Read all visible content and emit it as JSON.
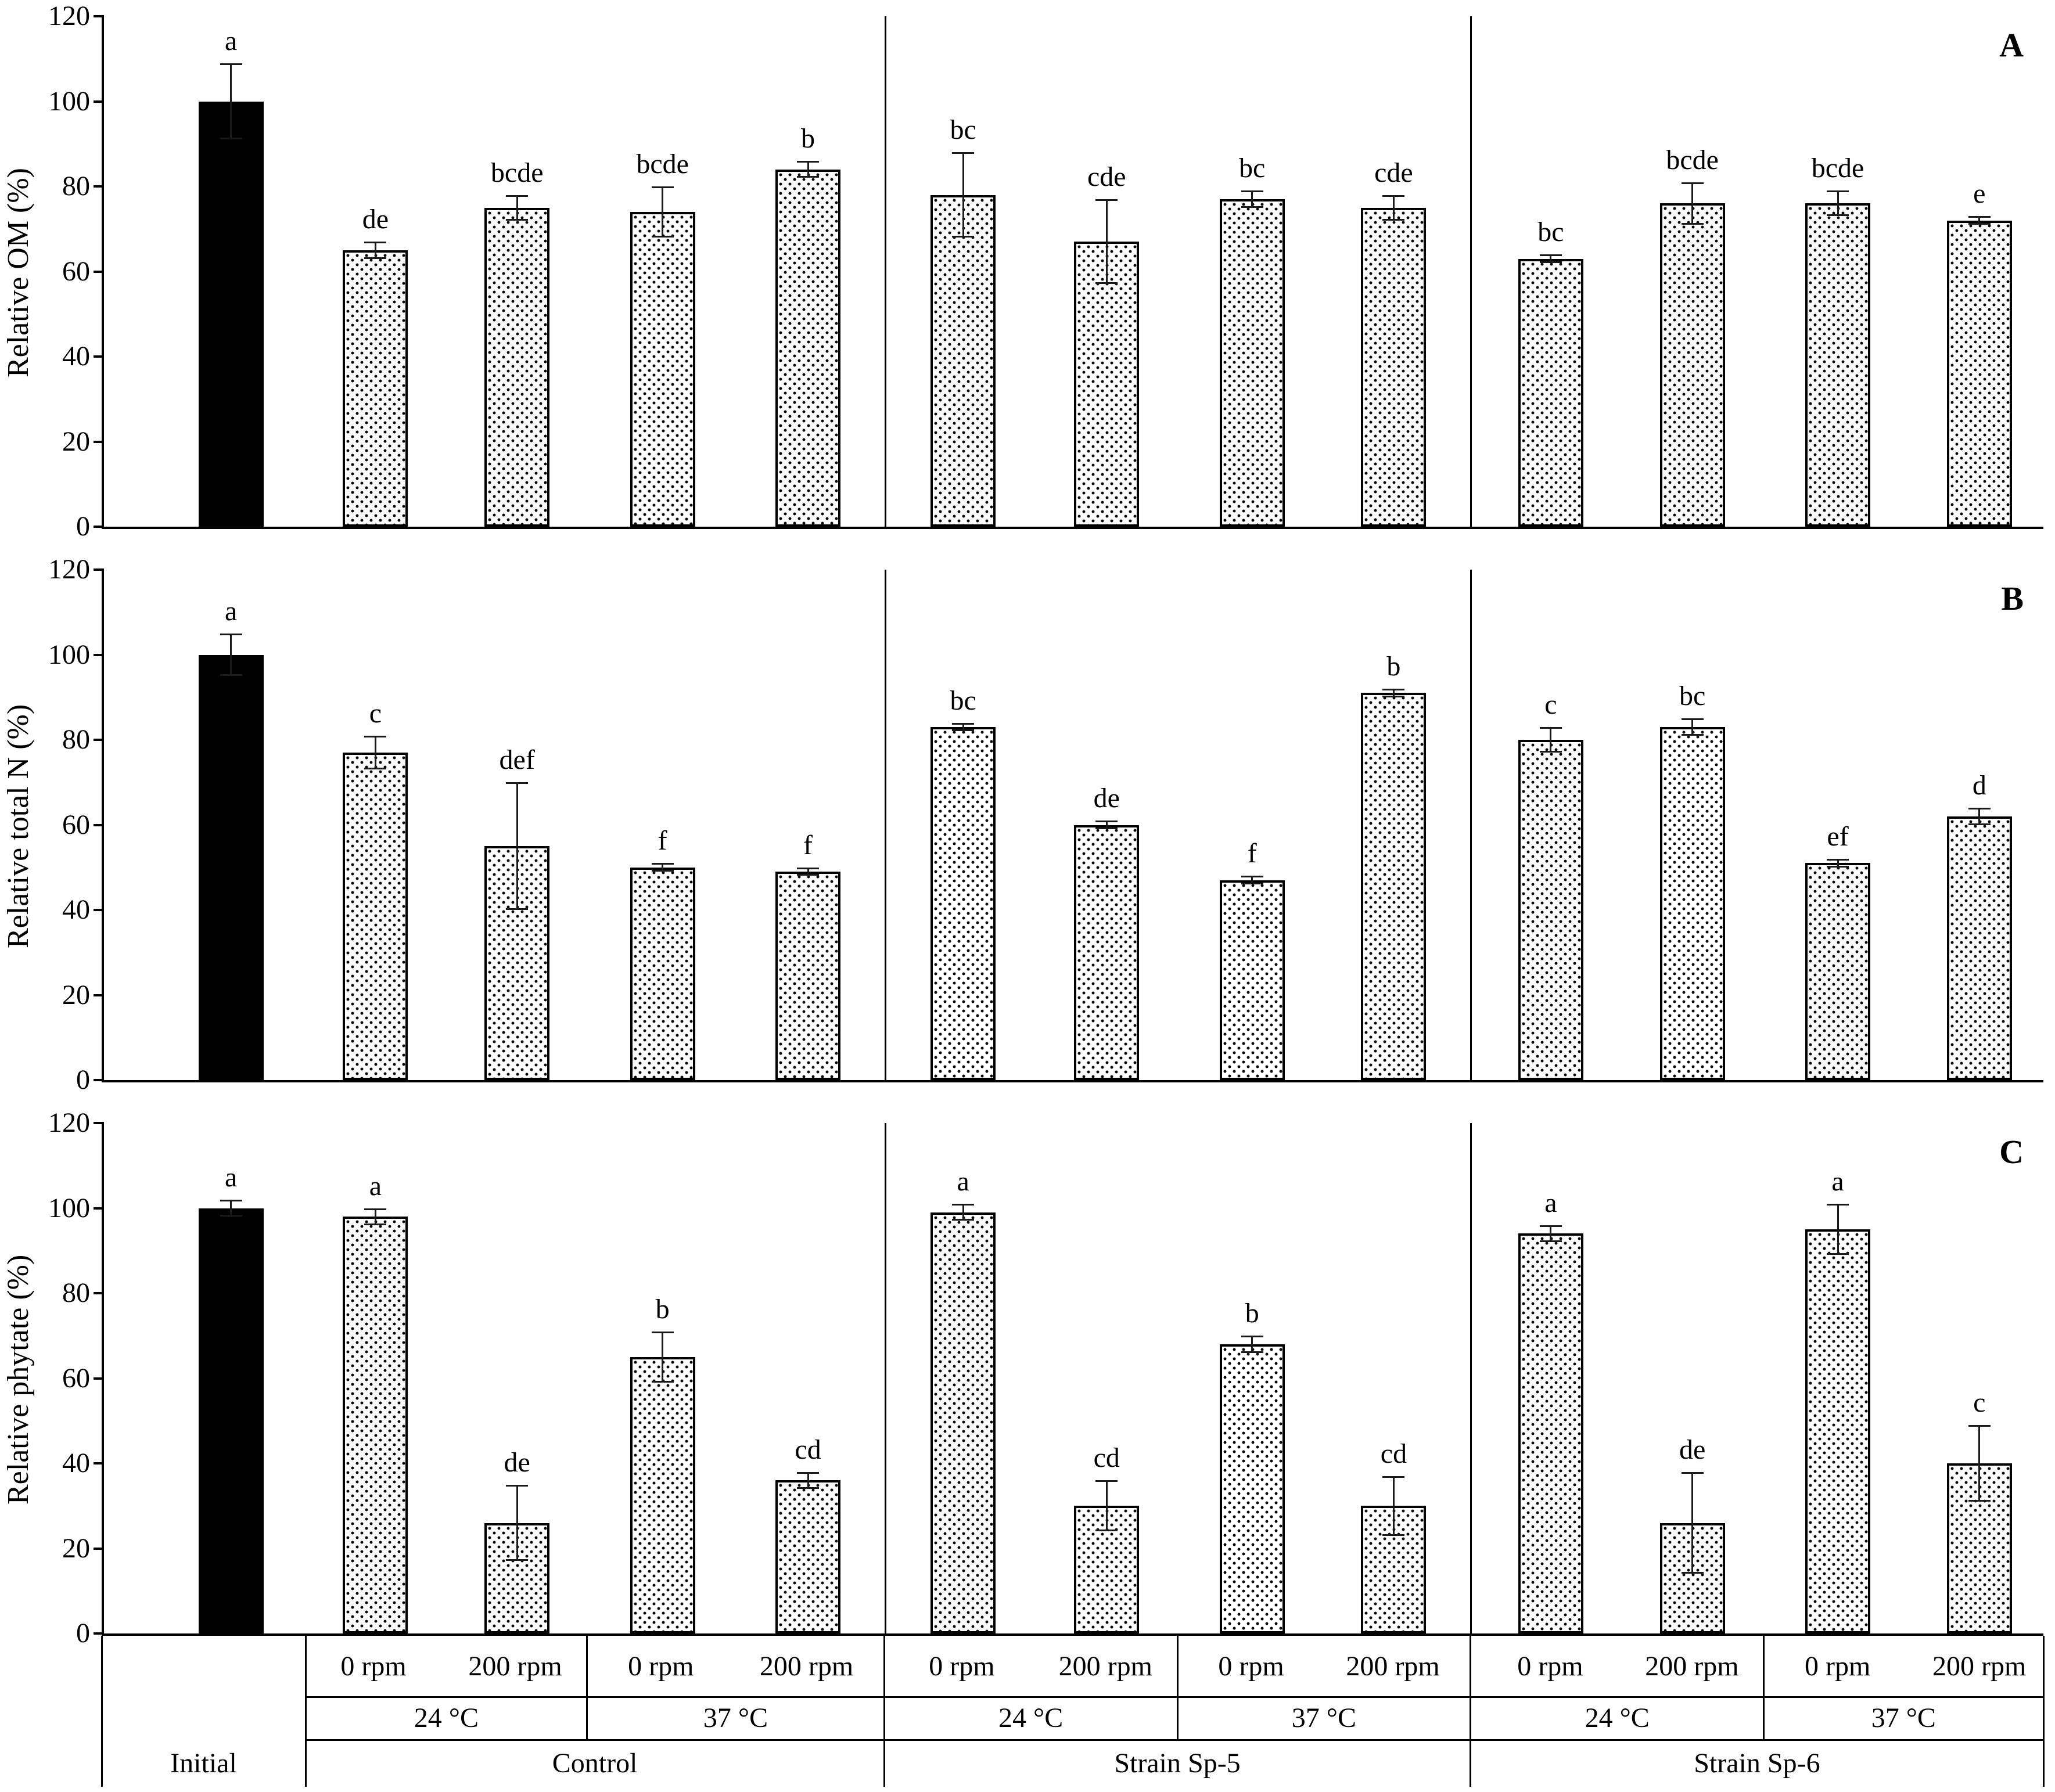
{
  "chart_data": [
    {
      "type": "bar",
      "panel_label": "A",
      "ylabel": "Relative OM (%)",
      "xlabel": "",
      "ylim": [
        0,
        120
      ],
      "yticks": [
        0,
        20,
        40,
        60,
        80,
        100,
        120
      ],
      "grid": false,
      "legend": "none",
      "bars": [
        {
          "label": "Initial",
          "value": 100,
          "error": 9,
          "letter": "a",
          "fill": "solid-black"
        },
        {
          "label": "Control 24 °C 0 rpm",
          "value": 65,
          "error": 2,
          "letter": "de",
          "fill": "dotted"
        },
        {
          "label": "Control 24 °C 200 rpm",
          "value": 75,
          "error": 3,
          "letter": "bcde",
          "fill": "dotted"
        },
        {
          "label": "Control 37 °C 0 rpm",
          "value": 74,
          "error": 6,
          "letter": "bcde",
          "fill": "dotted"
        },
        {
          "label": "Control 37 °C 200 rpm",
          "value": 84,
          "error": 2,
          "letter": "b",
          "fill": "dotted"
        },
        {
          "label": "Strain Sp-5 24 °C 0 rpm",
          "value": 78,
          "error": 10,
          "letter": "bc",
          "fill": "dotted"
        },
        {
          "label": "Strain Sp-5 24 °C 200 rpm",
          "value": 67,
          "error": 10,
          "letter": "cde",
          "fill": "dotted"
        },
        {
          "label": "Strain Sp-5 37 °C 0 rpm",
          "value": 77,
          "error": 2,
          "letter": "bc",
          "fill": "dotted"
        },
        {
          "label": "Strain Sp-5 37 °C 200 rpm",
          "value": 75,
          "error": 3,
          "letter": "cde",
          "fill": "dotted"
        },
        {
          "label": "Strain Sp-6 24 °C 0 rpm",
          "value": 63,
          "error": 1,
          "letter": "bc",
          "fill": "dotted"
        },
        {
          "label": "Strain Sp-6 24 °C 200 rpm",
          "value": 76,
          "error": 5,
          "letter": "bcde",
          "fill": "dotted"
        },
        {
          "label": "Strain Sp-6 37 °C 0 rpm",
          "value": 76,
          "error": 3,
          "letter": "bcde",
          "fill": "dotted"
        },
        {
          "label": "Strain Sp-6 37 °C 200 rpm",
          "value": 72,
          "error": 1,
          "letter": "e",
          "fill": "dotted"
        }
      ]
    },
    {
      "type": "bar",
      "panel_label": "B",
      "ylabel": "Relative total N (%)",
      "xlabel": "",
      "ylim": [
        0,
        120
      ],
      "yticks": [
        0,
        20,
        40,
        60,
        80,
        100,
        120
      ],
      "grid": false,
      "legend": "none",
      "bars": [
        {
          "label": "Initial",
          "value": 100,
          "error": 5,
          "letter": "a",
          "fill": "solid-black"
        },
        {
          "label": "Control 24 °C 0 rpm",
          "value": 77,
          "error": 4,
          "letter": "c",
          "fill": "dotted"
        },
        {
          "label": "Control 24 °C 200 rpm",
          "value": 55,
          "error": 15,
          "letter": "def",
          "fill": "dotted"
        },
        {
          "label": "Control 37 °C 0 rpm",
          "value": 50,
          "error": 1,
          "letter": "f",
          "fill": "dotted"
        },
        {
          "label": "Control 37 °C 200 rpm",
          "value": 49,
          "error": 1,
          "letter": "f",
          "fill": "dotted"
        },
        {
          "label": "Strain Sp-5 24 °C 0 rpm",
          "value": 83,
          "error": 1,
          "letter": "bc",
          "fill": "dotted"
        },
        {
          "label": "Strain Sp-5 24 °C 200 rpm",
          "value": 60,
          "error": 1,
          "letter": "de",
          "fill": "dotted"
        },
        {
          "label": "Strain Sp-5 37 °C 0 rpm",
          "value": 47,
          "error": 1,
          "letter": "f",
          "fill": "dotted"
        },
        {
          "label": "Strain Sp-5 37 °C 200 rpm",
          "value": 91,
          "error": 1,
          "letter": "b",
          "fill": "dotted"
        },
        {
          "label": "Strain Sp-6 24 °C 0 rpm",
          "value": 80,
          "error": 3,
          "letter": "c",
          "fill": "dotted"
        },
        {
          "label": "Strain Sp-6 24 °C 200 rpm",
          "value": 83,
          "error": 2,
          "letter": "bc",
          "fill": "dotted"
        },
        {
          "label": "Strain Sp-6 37 °C 0 rpm",
          "value": 51,
          "error": 1,
          "letter": "ef",
          "fill": "dotted"
        },
        {
          "label": "Strain Sp-6 37 °C 200 rpm",
          "value": 62,
          "error": 2,
          "letter": "d",
          "fill": "dotted"
        }
      ]
    },
    {
      "type": "bar",
      "panel_label": "C",
      "ylabel": "Relative phytate (%)",
      "xlabel": "",
      "ylim": [
        0,
        120
      ],
      "yticks": [
        0,
        20,
        40,
        60,
        80,
        100,
        120
      ],
      "grid": false,
      "legend": "none",
      "bars": [
        {
          "label": "Initial",
          "value": 100,
          "error": 2,
          "letter": "a",
          "fill": "solid-black"
        },
        {
          "label": "Control 24 °C 0 rpm",
          "value": 98,
          "error": 2,
          "letter": "a",
          "fill": "dotted"
        },
        {
          "label": "Control 24 °C 200 rpm",
          "value": 26,
          "error": 9,
          "letter": "de",
          "fill": "dotted"
        },
        {
          "label": "Control 37 °C 0 rpm",
          "value": 65,
          "error": 6,
          "letter": "b",
          "fill": "dotted"
        },
        {
          "label": "Control 37 °C 200 rpm",
          "value": 36,
          "error": 2,
          "letter": "cd",
          "fill": "dotted"
        },
        {
          "label": "Strain Sp-5 24 °C 0 rpm",
          "value": 99,
          "error": 2,
          "letter": "a",
          "fill": "dotted"
        },
        {
          "label": "Strain Sp-5 24 °C 200 rpm",
          "value": 30,
          "error": 6,
          "letter": "cd",
          "fill": "dotted"
        },
        {
          "label": "Strain Sp-5 37 °C 0 rpm",
          "value": 68,
          "error": 2,
          "letter": "b",
          "fill": "dotted"
        },
        {
          "label": "Strain Sp-5 37 °C 200 rpm",
          "value": 30,
          "error": 7,
          "letter": "cd",
          "fill": "dotted"
        },
        {
          "label": "Strain Sp-6 24 °C 0 rpm",
          "value": 94,
          "error": 2,
          "letter": "a",
          "fill": "dotted"
        },
        {
          "label": "Strain Sp-6 24 °C 200 rpm",
          "value": 26,
          "error": 12,
          "letter": "de",
          "fill": "dotted"
        },
        {
          "label": "Strain Sp-6 37 °C 0 rpm",
          "value": 95,
          "error": 6,
          "letter": "a",
          "fill": "dotted"
        },
        {
          "label": "Strain Sp-6 37 °C 200 rpm",
          "value": 40,
          "error": 9,
          "letter": "c",
          "fill": "dotted"
        }
      ]
    }
  ],
  "category_axis": {
    "rpm_row": [
      "0 rpm",
      "200 rpm",
      "0 rpm",
      "200 rpm",
      "0 rpm",
      "200 rpm",
      "0 rpm",
      "200 rpm",
      "0 rpm",
      "200 rpm",
      "0 rpm",
      "200 rpm"
    ],
    "temp_row": [
      "24 °C",
      "37 °C",
      "24 °C",
      "37 °C",
      "24 °C",
      "37 °C"
    ],
    "group_row": [
      "Initial",
      "Control",
      "Strain Sp-5",
      "Strain Sp-6"
    ]
  },
  "colors": {
    "initial_bar_fill": "#000000",
    "treatment_bar_fill": "#ffffff",
    "bar_border": "#000000",
    "axis": "#000000",
    "text": "#000000",
    "background": "#ffffff"
  }
}
